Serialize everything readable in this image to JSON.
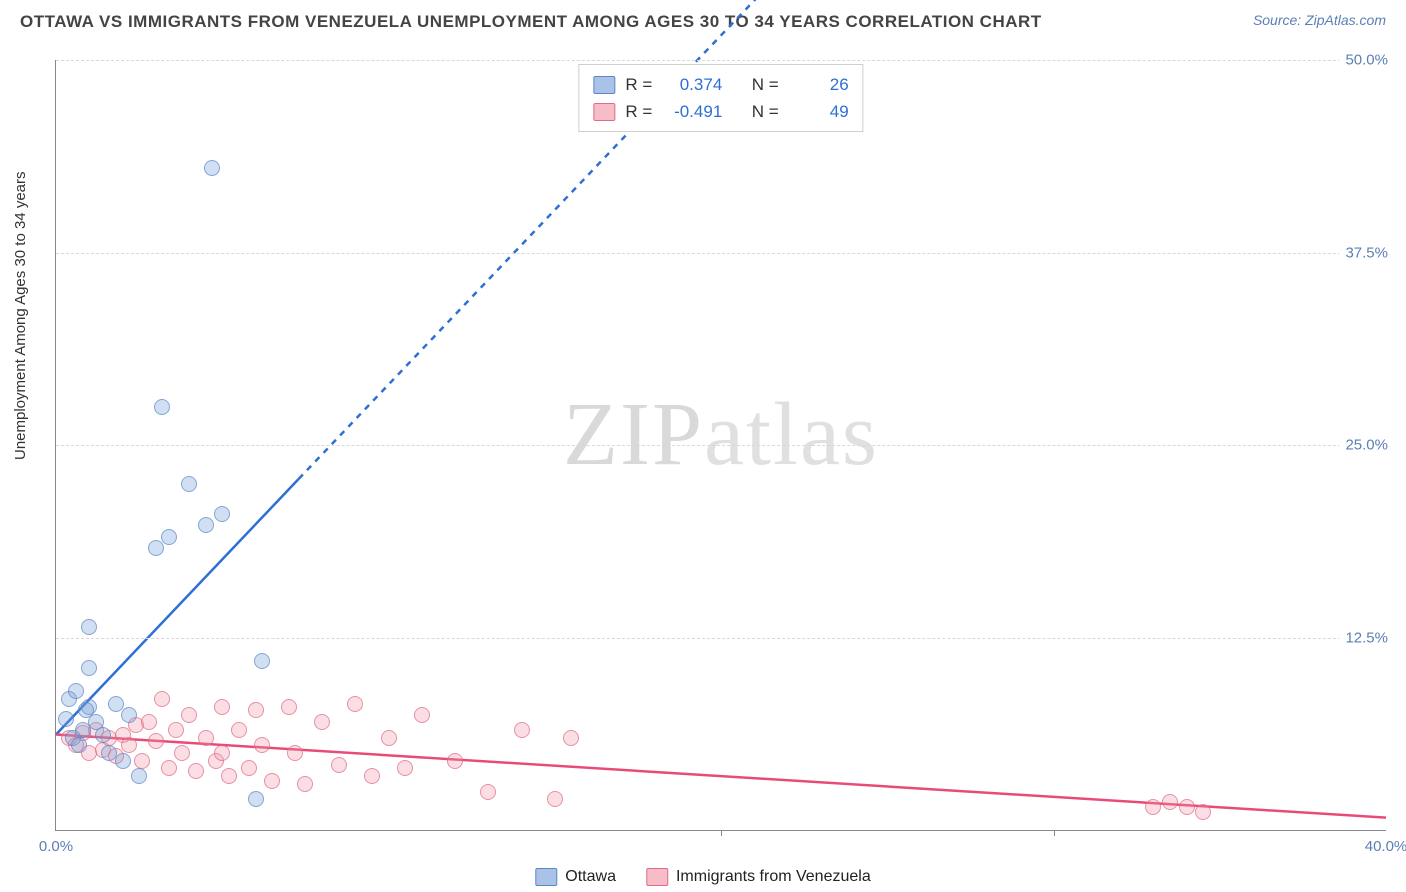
{
  "title": "OTTAWA VS IMMIGRANTS FROM VENEZUELA UNEMPLOYMENT AMONG AGES 30 TO 34 YEARS CORRELATION CHART",
  "source_label": "Source:",
  "source_name": "ZipAtlas.com",
  "ylabel": "Unemployment Among Ages 30 to 34 years",
  "watermark_a": "ZIP",
  "watermark_b": "atlas",
  "chart": {
    "type": "scatter",
    "background": "#ffffff",
    "grid_color": "#d8d8d8",
    "axis_color": "#888888",
    "text_color": "#5b7fb5",
    "xlim": [
      0,
      40
    ],
    "ylim": [
      0,
      50
    ],
    "yticks": [
      12.5,
      25.0,
      37.5,
      50.0
    ],
    "ytick_labels": [
      "12.5%",
      "25.0%",
      "37.5%",
      "50.0%"
    ],
    "xticks": [
      0,
      40
    ],
    "xtick_labels": [
      "0.0%",
      "40.0%"
    ],
    "xtick_majors": [
      20,
      30
    ],
    "marker_radius": 7
  },
  "legend": {
    "series_a": {
      "label": "Ottawa",
      "swatch_fill": "#a9c3e8",
      "swatch_border": "#5b86c7",
      "r_label": "R =",
      "r": "0.374",
      "n_label": "N =",
      "n": "26"
    },
    "series_b": {
      "label": "Immigrants from Venezuela",
      "swatch_fill": "#f6bcc8",
      "swatch_border": "#e06a87",
      "r_label": "R =",
      "r": "-0.491",
      "n_label": "N =",
      "n": "49"
    }
  },
  "series_a": {
    "color_fill": "rgba(120,160,215,0.45)",
    "color_stroke": "#5b86c7",
    "trend_color": "#2e6fd6",
    "trend": {
      "x1": 0,
      "y1": 6.2,
      "x2": 7.3,
      "y2": 22.8,
      "dash_x2": 21.5,
      "dash_y2": 55
    },
    "points": [
      [
        0.3,
        7.2
      ],
      [
        0.4,
        8.5
      ],
      [
        0.6,
        9.0
      ],
      [
        0.8,
        6.5
      ],
      [
        1.0,
        8.0
      ],
      [
        1.0,
        13.2
      ],
      [
        0.5,
        6.0
      ],
      [
        0.7,
        5.5
      ],
      [
        1.2,
        7.0
      ],
      [
        1.4,
        6.2
      ],
      [
        1.6,
        5.0
      ],
      [
        1.8,
        8.2
      ],
      [
        2.0,
        4.5
      ],
      [
        2.2,
        7.5
      ],
      [
        2.5,
        3.5
      ],
      [
        3.0,
        18.3
      ],
      [
        3.4,
        19.0
      ],
      [
        4.0,
        22.5
      ],
      [
        4.5,
        19.8
      ],
      [
        5.0,
        20.5
      ],
      [
        3.2,
        27.5
      ],
      [
        4.7,
        43.0
      ],
      [
        6.2,
        11.0
      ],
      [
        6.0,
        2.0
      ],
      [
        1.0,
        10.5
      ],
      [
        0.9,
        7.8
      ]
    ]
  },
  "series_b": {
    "color_fill": "rgba(240,145,165,0.4)",
    "color_stroke": "#e06a87",
    "trend_color": "#e94b77",
    "trend": {
      "x1": 0,
      "y1": 6.2,
      "x2": 40,
      "y2": 0.8
    },
    "points": [
      [
        0.4,
        6.0
      ],
      [
        0.6,
        5.5
      ],
      [
        0.8,
        6.3
      ],
      [
        1.0,
        5.0
      ],
      [
        1.2,
        6.5
      ],
      [
        1.4,
        5.2
      ],
      [
        1.6,
        6.0
      ],
      [
        1.8,
        4.8
      ],
      [
        2.0,
        6.2
      ],
      [
        2.2,
        5.5
      ],
      [
        2.4,
        6.8
      ],
      [
        2.6,
        4.5
      ],
      [
        2.8,
        7.0
      ],
      [
        3.0,
        5.8
      ],
      [
        3.2,
        8.5
      ],
      [
        3.4,
        4.0
      ],
      [
        3.6,
        6.5
      ],
      [
        3.8,
        5.0
      ],
      [
        4.0,
        7.5
      ],
      [
        4.2,
        3.8
      ],
      [
        4.5,
        6.0
      ],
      [
        4.8,
        4.5
      ],
      [
        5.0,
        8.0
      ],
      [
        5.2,
        3.5
      ],
      [
        5.5,
        6.5
      ],
      [
        5.8,
        4.0
      ],
      [
        6.0,
        7.8
      ],
      [
        6.5,
        3.2
      ],
      [
        7.0,
        8.0
      ],
      [
        7.2,
        5.0
      ],
      [
        7.5,
        3.0
      ],
      [
        8.0,
        7.0
      ],
      [
        8.5,
        4.2
      ],
      [
        9.0,
        8.2
      ],
      [
        9.5,
        3.5
      ],
      [
        10.0,
        6.0
      ],
      [
        10.5,
        4.0
      ],
      [
        11.0,
        7.5
      ],
      [
        12.0,
        4.5
      ],
      [
        13.0,
        2.5
      ],
      [
        14.0,
        6.5
      ],
      [
        15.0,
        2.0
      ],
      [
        15.5,
        6.0
      ],
      [
        33.0,
        1.5
      ],
      [
        33.5,
        1.8
      ],
      [
        34.0,
        1.5
      ],
      [
        34.5,
        1.2
      ],
      [
        5.0,
        5.0
      ],
      [
        6.2,
        5.5
      ]
    ]
  }
}
